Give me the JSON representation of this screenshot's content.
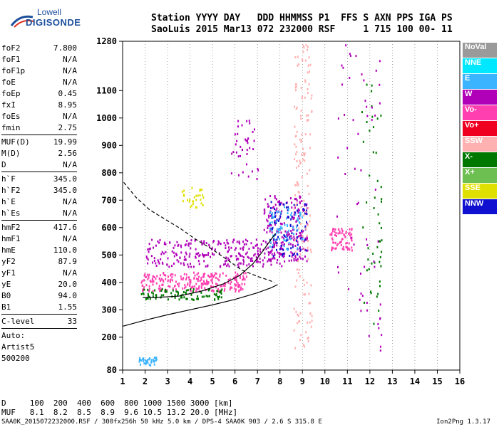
{
  "logo": {
    "top": "Lowell",
    "bottom": "DIGISONDE"
  },
  "header": {
    "line1": "Station YYYY DAY   DDD HHMMSS P1  FFS S AXN PPS IGA PS",
    "line2": "SaoLuis 2015 Mar13 072 232000 RSF     1 715 100 00- 11"
  },
  "params": {
    "group1": [
      {
        "k": "foF2",
        "v": "7.800"
      },
      {
        "k": "foF1",
        "v": "N/A"
      },
      {
        "k": "foF1p",
        "v": "N/A"
      },
      {
        "k": "foE",
        "v": "N/A"
      },
      {
        "k": "foEp",
        "v": "0.45"
      },
      {
        "k": "fxI",
        "v": "8.95"
      },
      {
        "k": "foEs",
        "v": "N/A"
      },
      {
        "k": "fmin",
        "v": "2.75"
      }
    ],
    "group2": [
      {
        "k": "MUF(D)",
        "v": "19.99"
      },
      {
        "k": "M(D)",
        "v": "2.56"
      },
      {
        "k": "D",
        "v": "N/A"
      }
    ],
    "group3": [
      {
        "k": "h`F",
        "v": "345.0"
      },
      {
        "k": "h`F2",
        "v": "345.0"
      },
      {
        "k": "h`E",
        "v": "N/A"
      },
      {
        "k": "h`Es",
        "v": "N/A"
      }
    ],
    "group4": [
      {
        "k": "hmF2",
        "v": "417.6"
      },
      {
        "k": "hmF1",
        "v": "N/A"
      },
      {
        "k": "hmE",
        "v": "110.0"
      },
      {
        "k": "yF2",
        "v": "87.9"
      },
      {
        "k": "yF1",
        "v": "N/A"
      },
      {
        "k": "yE",
        "v": "20.0"
      },
      {
        "k": "B0",
        "v": "94.0"
      },
      {
        "k": "B1",
        "v": "1.55"
      }
    ],
    "group5": [
      {
        "k": "C-level",
        "v": "33"
      }
    ],
    "auto": [
      "Auto:",
      "Artist5",
      "500200"
    ]
  },
  "legend": [
    {
      "label": "NoVal",
      "color": "#9a9a9a"
    },
    {
      "label": "NNE",
      "color": "#00e8ff"
    },
    {
      "label": "E",
      "color": "#3ab4ff"
    },
    {
      "label": "W",
      "color": "#b000b8"
    },
    {
      "label": "Vo-",
      "color": "#ff3fb0"
    },
    {
      "label": "Vo+",
      "color": "#f00020"
    },
    {
      "label": "SSW",
      "color": "#ffb0b0"
    },
    {
      "label": "X-",
      "color": "#007800"
    },
    {
      "label": "X+",
      "color": "#6cbf50"
    },
    {
      "label": "SSE",
      "color": "#e0e000"
    },
    {
      "label": "NNW",
      "color": "#1010d0"
    }
  ],
  "bottom": {
    "line1": "D     100  200  400  600  800 1000 1500 3000 [km]",
    "line2": "MUF   8.1  8.2  8.5  8.9  9.6 10.5 13.2 20.0 [MHz]"
  },
  "footer": {
    "left": "SAA0K_2015072232000.RSF / 300fx256h 50 kHz 5.0 km / DPS-4 SAA0K 903 / 2.6 S 315.8 E",
    "right": "Ion2Png 1.3.17"
  },
  "chart_data": {
    "type": "scatter",
    "xlabel": "",
    "ylabel": "",
    "xlim": [
      1,
      16
    ],
    "ylim": [
      80,
      1280
    ],
    "xticks": [
      1,
      2,
      3,
      4,
      5,
      6,
      7,
      8,
      9,
      10,
      11,
      12,
      13,
      14,
      15,
      16
    ],
    "yticks": [
      80,
      200,
      300,
      400,
      500,
      600,
      700,
      800,
      900,
      1000,
      1100,
      1280
    ],
    "grid": "dotted vertical at integer MHz",
    "series": [
      {
        "color": "#000000",
        "style": "solid",
        "points": [
          [
            1,
            240
          ],
          [
            2,
            262
          ],
          [
            3,
            282
          ],
          [
            4,
            300
          ],
          [
            5,
            318
          ],
          [
            6,
            338
          ],
          [
            7,
            362
          ],
          [
            7.6,
            380
          ],
          [
            7.9,
            392
          ]
        ]
      },
      {
        "color": "#000000",
        "style": "solid",
        "points": [
          [
            1.9,
            345
          ],
          [
            2.5,
            345
          ],
          [
            3.5,
            350
          ],
          [
            4.5,
            368
          ],
          [
            5.5,
            395
          ],
          [
            6.2,
            425
          ],
          [
            6.8,
            468
          ],
          [
            7.2,
            510
          ],
          [
            7.5,
            545
          ],
          [
            7.8,
            578
          ]
        ]
      },
      {
        "color": "#000000",
        "style": "dashed",
        "points": [
          [
            1.05,
            765
          ],
          [
            1.6,
            710
          ],
          [
            2.2,
            665
          ],
          [
            3,
            625
          ],
          [
            3.6,
            595
          ],
          [
            4.2,
            560
          ],
          [
            5,
            520
          ],
          [
            5.7,
            480
          ],
          [
            6.3,
            445
          ],
          [
            7,
            422
          ],
          [
            7.5,
            408
          ],
          [
            7.75,
            400
          ]
        ]
      }
    ],
    "scatter_clusters": [
      {
        "color": "#b000b8",
        "x": [
          2,
          8.2
        ],
        "y": [
          460,
          560
        ],
        "n": 260
      },
      {
        "color": "#ff3fb0",
        "x": [
          1.8,
          6.5
        ],
        "y": [
          370,
          440
        ],
        "n": 260
      },
      {
        "color": "#007800",
        "x": [
          1.8,
          5.5
        ],
        "y": [
          340,
          380
        ],
        "n": 90
      },
      {
        "color": "#b000b8",
        "x": [
          7.2,
          9.2
        ],
        "y": [
          480,
          720
        ],
        "n": 200
      },
      {
        "color": "#1010d0",
        "x": [
          7.5,
          9.2
        ],
        "y": [
          500,
          700
        ],
        "n": 90
      },
      {
        "color": "#3ab4ff",
        "x": [
          7.5,
          9
        ],
        "y": [
          520,
          680
        ],
        "n": 70
      },
      {
        "color": "#ffb0b0",
        "x": [
          8.6,
          9.4
        ],
        "y": [
          160,
          1270
        ],
        "n": 160
      },
      {
        "color": "#ff3fb0",
        "x": [
          10.2,
          11.2
        ],
        "y": [
          520,
          600
        ],
        "n": 70
      },
      {
        "color": "#007800",
        "x": [
          11.6,
          12.5
        ],
        "y": [
          250,
          1150
        ],
        "n": 50
      },
      {
        "color": "#e0e000",
        "x": [
          3.6,
          4.6
        ],
        "y": [
          670,
          750
        ],
        "n": 30
      },
      {
        "color": "#3ab4ff",
        "x": [
          1.7,
          2.5
        ],
        "y": [
          100,
          130
        ],
        "n": 40
      },
      {
        "color": "#b000b8",
        "x": [
          10.5,
          12.5
        ],
        "y": [
          150,
          1280
        ],
        "n": 60
      },
      {
        "color": "#b000b8",
        "x": [
          5.8,
          7
        ],
        "y": [
          780,
          1000
        ],
        "n": 40
      }
    ]
  }
}
